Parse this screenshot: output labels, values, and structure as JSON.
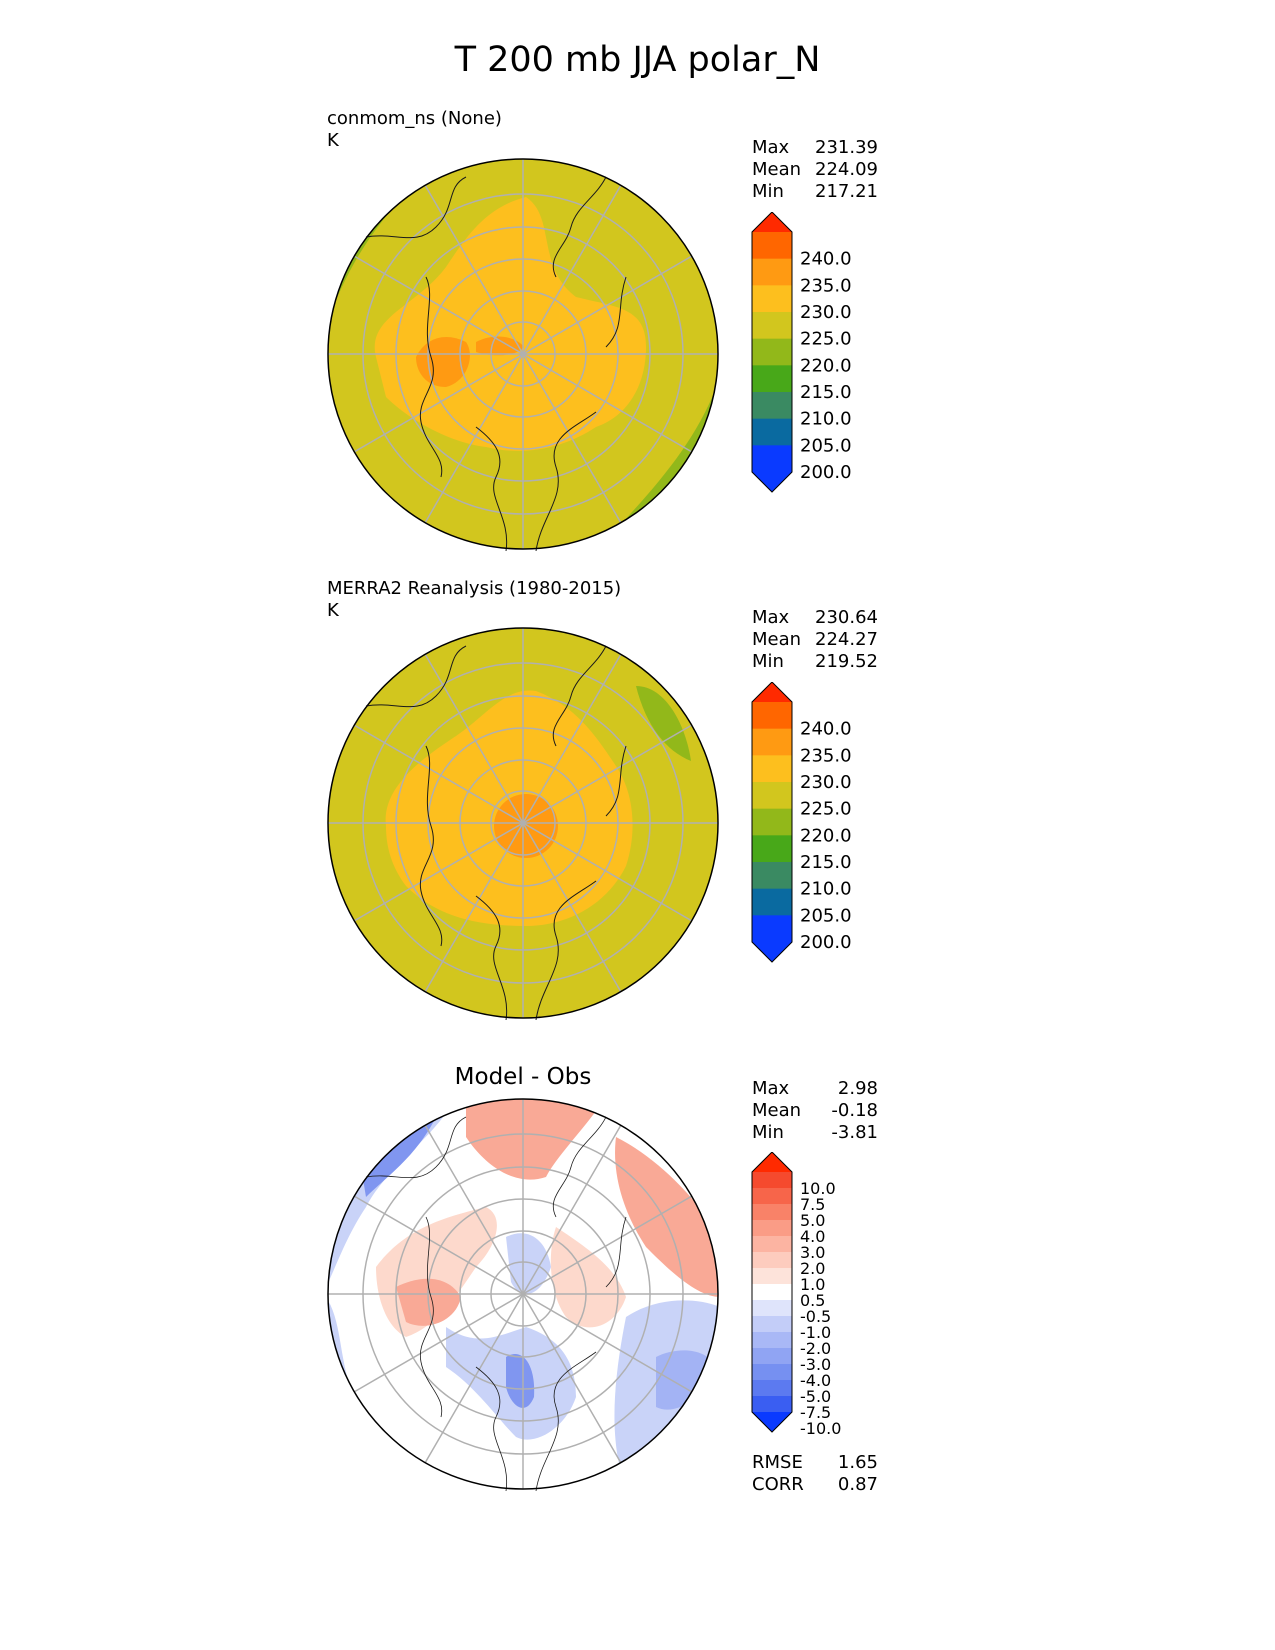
{
  "title": "T 200 mb JJA polar_N",
  "panels": [
    {
      "name": "conmom_ns (None)",
      "units": "K",
      "stats": [
        {
          "label": "Max",
          "value": "231.39"
        },
        {
          "label": "Mean",
          "value": "224.09"
        },
        {
          "label": "Min",
          "value": "217.21"
        }
      ]
    },
    {
      "name": "MERRA2 Reanalysis (1980-2015)",
      "units": "K",
      "stats": [
        {
          "label": "Max",
          "value": "230.64"
        },
        {
          "label": "Mean",
          "value": "224.27"
        },
        {
          "label": "Min",
          "value": "219.52"
        }
      ]
    },
    {
      "name": "Model - Obs",
      "stats": [
        {
          "label": "Max",
          "value": "2.98"
        },
        {
          "label": "Mean",
          "value": "-0.18"
        },
        {
          "label": "Min",
          "value": "-3.81"
        }
      ],
      "metrics": [
        {
          "label": "RMSE",
          "value": "1.65"
        },
        {
          "label": "CORR",
          "value": "0.87"
        }
      ]
    }
  ],
  "colorbars": {
    "field": {
      "ticks": [
        "240.0",
        "235.0",
        "230.0",
        "225.0",
        "220.0",
        "215.0",
        "210.0",
        "205.0",
        "200.0"
      ],
      "colors": [
        "#ff2a00",
        "#ff6600",
        "#ff9a12",
        "#fdbf1e",
        "#d2c61e",
        "#92b81a",
        "#48a819",
        "#3a8a62",
        "#0a6aa0",
        "#0a3aff",
        "#0a3aff"
      ]
    },
    "diff": {
      "ticks": [
        "10.0",
        "7.5",
        "5.0",
        "4.0",
        "3.0",
        "2.0",
        "1.0",
        "0.5",
        "-0.5",
        "-1.0",
        "-2.0",
        "-3.0",
        "-4.0",
        "-5.0",
        "-7.5",
        "-10.0"
      ],
      "colors": [
        "#ff2a00",
        "#f54a2e",
        "#f7654a",
        "#f98268",
        "#fa9c86",
        "#fcb4a2",
        "#fdccbe",
        "#fde3da",
        "#ffffff",
        "#dfe4fb",
        "#c3cdf8",
        "#a9b8f6",
        "#90a4f3",
        "#7690f1",
        "#5c7af0",
        "#3a5ef2",
        "#0a3aff"
      ]
    }
  },
  "map_colors": {
    "field": {
      "220": "#d2c61e",
      "215": "#92b81a",
      "225": "#fdbf1e",
      "230": "#ff9a12"
    },
    "diff": {
      "pos1": "#fdd9cc",
      "pos2": "#f9a996",
      "neg1": "#c9d3f8",
      "neg2": "#a3b3f4",
      "neg3": "#8096f0"
    },
    "gridline": "#b0b0b0",
    "coast": "#1a1a1a"
  }
}
